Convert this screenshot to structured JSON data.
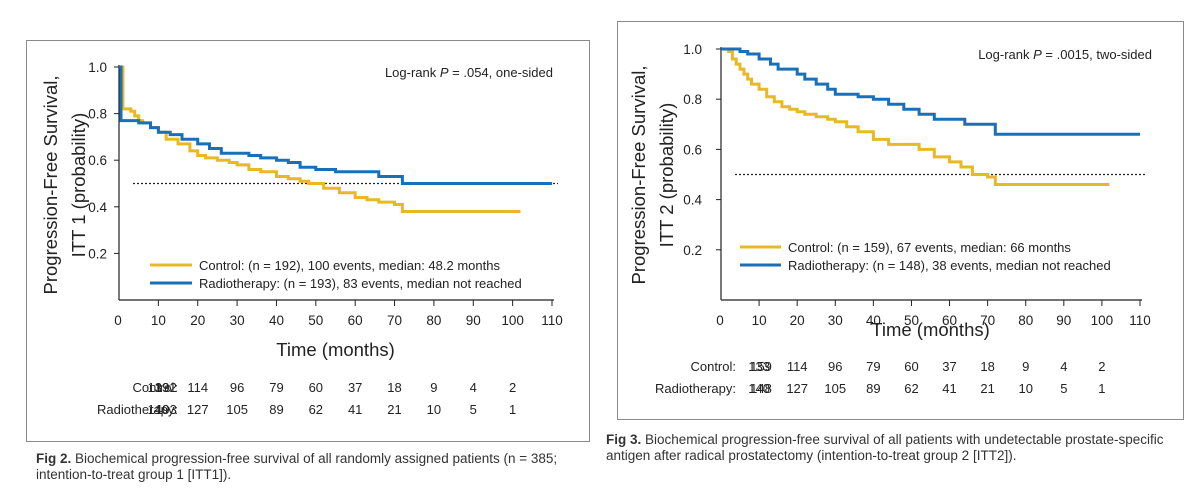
{
  "figures": [
    {
      "id": "fig2",
      "caption_label": "Fig 2.",
      "caption_text": "Biochemical progression-free survival of all randomly assigned patients (n = 385; intention-to-treat group 1 [ITT1]).",
      "annotation_prefix": "Log-rank ",
      "annotation_p": "P",
      "annotation_suffix": " = .054, one-sided",
      "risk_labels": [
        "Control:",
        "Radiotherapy:"
      ]
    },
    {
      "id": "fig3",
      "caption_label": "Fig 3.",
      "caption_text": "Biochemical progression-free survival of all patients with undetectable prostate-specific antigen after radical prostatectomy (intention-to-treat group 2 [ITT2]).",
      "annotation_prefix": "Log-rank ",
      "annotation_p": "P",
      "annotation_suffix": " = .0015, two-sided",
      "risk_labels": [
        "Control:",
        "Radiotherapy:"
      ]
    }
  ],
  "colors": {
    "control": "#e8b825",
    "radiotherapy": "#1a70b8",
    "axis": "#222222",
    "reference": "#222222"
  },
  "chart_data": [
    {
      "type": "line",
      "xlabel": "Time (months)",
      "ylabel_line1": "Progression-Free Survival,",
      "ylabel_line2": "ITT 1 (probability)",
      "xlim": [
        0,
        110
      ],
      "ylim": [
        0,
        1.0
      ],
      "xticks": [
        10,
        20,
        30,
        40,
        50,
        60,
        70,
        80,
        90,
        100,
        110
      ],
      "yticks": [
        0.2,
        0.4,
        0.6,
        0.8,
        1.0
      ],
      "ytick_labels": [
        "0.2",
        "0.4",
        "0.6",
        "0.8",
        "1.0"
      ],
      "origin_label": "0",
      "reference_line": 0.5,
      "legend_position": "lower-left",
      "series": [
        {
          "name": "Control: (n = 192), 100 events, median: 48.2 months",
          "color_key": "control",
          "x": [
            0,
            1,
            2,
            3,
            4,
            5,
            6,
            8,
            10,
            12,
            15,
            18,
            20,
            22,
            25,
            28,
            30,
            33,
            36,
            40,
            43,
            46,
            48.2,
            52,
            56,
            60,
            63,
            66,
            70,
            72,
            80,
            90,
            102
          ],
          "y": [
            1.0,
            0.82,
            0.82,
            0.81,
            0.79,
            0.77,
            0.76,
            0.74,
            0.72,
            0.69,
            0.67,
            0.64,
            0.62,
            0.61,
            0.6,
            0.59,
            0.58,
            0.56,
            0.55,
            0.53,
            0.52,
            0.51,
            0.5,
            0.48,
            0.46,
            0.44,
            0.43,
            0.42,
            0.41,
            0.38,
            0.38,
            0.38,
            0.38
          ]
        },
        {
          "name": "Radiotherapy: (n = 193), 83 events, median not reached",
          "color_key": "radiotherapy",
          "x": [
            0,
            0.5,
            3,
            5,
            8,
            10,
            13,
            16,
            20,
            23,
            26,
            30,
            33,
            36,
            40,
            43,
            46,
            50,
            55,
            60,
            63,
            66,
            70,
            72,
            80,
            90,
            100,
            110
          ],
          "y": [
            1.0,
            0.77,
            0.77,
            0.76,
            0.74,
            0.72,
            0.71,
            0.69,
            0.67,
            0.65,
            0.63,
            0.63,
            0.62,
            0.61,
            0.6,
            0.59,
            0.57,
            0.56,
            0.55,
            0.55,
            0.55,
            0.53,
            0.53,
            0.5,
            0.5,
            0.5,
            0.5,
            0.5
          ]
        }
      ],
      "risk_table": {
        "times": [
          0,
          10,
          20,
          30,
          40,
          50,
          60,
          70,
          80,
          90,
          100
        ],
        "control": [
          "192",
          "133",
          "114",
          "96",
          "79",
          "60",
          "37",
          "18",
          "9",
          "4",
          "2"
        ],
        "radiotherapy": [
          "193",
          "140",
          "127",
          "105",
          "89",
          "62",
          "41",
          "21",
          "10",
          "5",
          "1"
        ]
      }
    },
    {
      "type": "line",
      "xlabel": "Time (months)",
      "ylabel_line1": "Progression-Free Survival,",
      "ylabel_line2": "ITT 2 (probability)",
      "xlim": [
        0,
        110
      ],
      "ylim": [
        0,
        1.0
      ],
      "xticks": [
        10,
        20,
        30,
        40,
        50,
        60,
        70,
        80,
        90,
        100,
        110
      ],
      "yticks": [
        0.2,
        0.4,
        0.6,
        0.8,
        1.0
      ],
      "ytick_labels": [
        "0.2",
        "0.4",
        "0.6",
        "0.8",
        "1.0"
      ],
      "origin_label": "0",
      "reference_line": 0.5,
      "legend_position": "lower-left",
      "series": [
        {
          "name": "Control: (n = 159), 67 events, median: 66 months",
          "color_key": "control",
          "x": [
            0,
            2,
            3,
            4,
            5,
            6,
            7,
            8,
            10,
            12,
            14,
            16,
            18,
            20,
            22,
            25,
            28,
            30,
            33,
            36,
            40,
            44,
            48,
            52,
            56,
            60,
            63,
            66,
            70,
            72,
            80,
            90,
            102
          ],
          "y": [
            1.0,
            0.99,
            0.96,
            0.94,
            0.92,
            0.9,
            0.88,
            0.86,
            0.84,
            0.81,
            0.79,
            0.77,
            0.76,
            0.75,
            0.74,
            0.73,
            0.72,
            0.71,
            0.69,
            0.67,
            0.64,
            0.62,
            0.62,
            0.6,
            0.57,
            0.55,
            0.53,
            0.5,
            0.49,
            0.46,
            0.46,
            0.46,
            0.46
          ]
        },
        {
          "name": "Radiotherapy: (n = 148), 38 events, median not reached",
          "color_key": "radiotherapy",
          "x": [
            0,
            3,
            5,
            7,
            10,
            13,
            15,
            20,
            22,
            25,
            28,
            30,
            33,
            36,
            40,
            44,
            48,
            52,
            56,
            60,
            64,
            68,
            72,
            80,
            90,
            100,
            110
          ],
          "y": [
            1.0,
            1.0,
            0.99,
            0.98,
            0.96,
            0.94,
            0.92,
            0.9,
            0.88,
            0.86,
            0.84,
            0.82,
            0.82,
            0.81,
            0.8,
            0.78,
            0.76,
            0.74,
            0.72,
            0.72,
            0.7,
            0.7,
            0.66,
            0.66,
            0.66,
            0.66,
            0.66
          ]
        }
      ],
      "risk_table": {
        "times": [
          0,
          10,
          20,
          30,
          40,
          50,
          60,
          70,
          80,
          90,
          100
        ],
        "control": [
          "159",
          "133",
          "114",
          "96",
          "79",
          "60",
          "37",
          "18",
          "9",
          "4",
          "2"
        ],
        "radiotherapy": [
          "148",
          "140",
          "127",
          "105",
          "89",
          "62",
          "41",
          "21",
          "10",
          "5",
          "1"
        ]
      }
    }
  ]
}
